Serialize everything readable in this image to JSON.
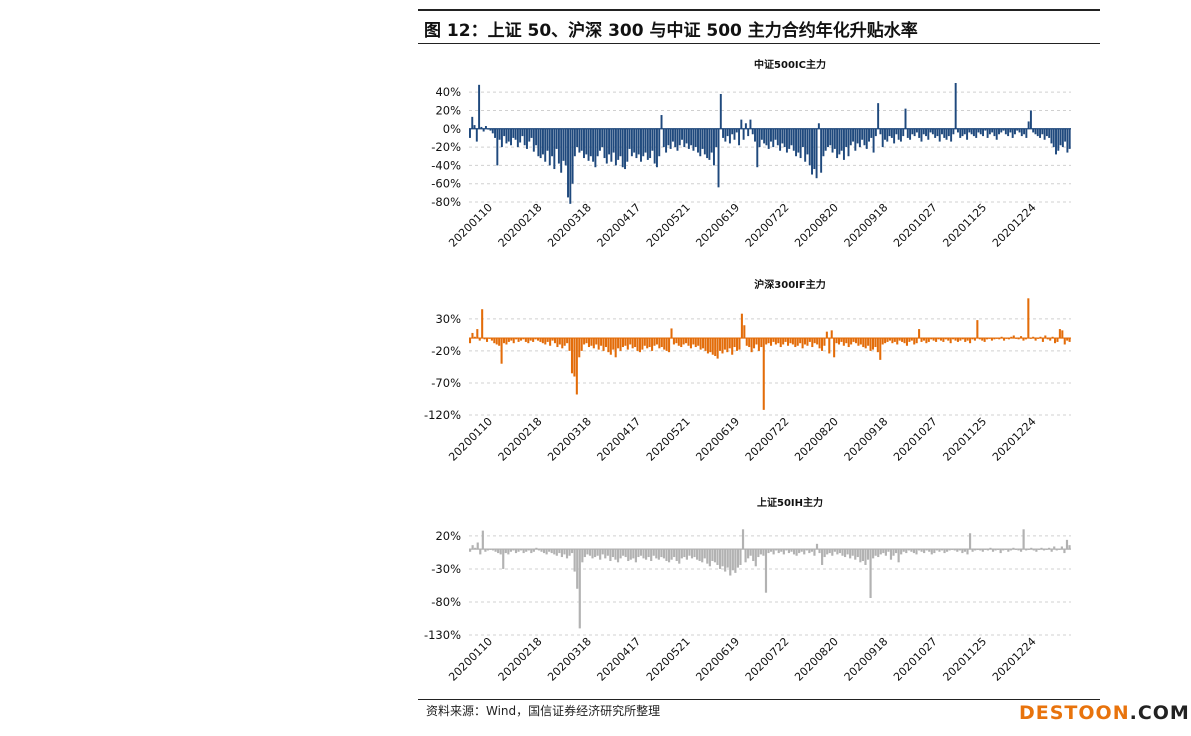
{
  "report": {
    "figure_title": "图 12：上证 50、沪深 300 与中证 500 主力合约年化升贴水率",
    "source_note": "资料来源：Wind，国信证券经济研究所整理",
    "watermark_a": "DESTOON",
    "watermark_b": ".COM"
  },
  "chart_data": [
    {
      "type": "bar",
      "title": "中证500IC主力",
      "color": "#1f497d",
      "ylim": [
        -80,
        50
      ],
      "yticks": [
        "40%",
        "20%",
        "0%",
        "-20%",
        "-40%",
        "-60%",
        "-80%"
      ],
      "ytick_values": [
        40,
        20,
        0,
        -20,
        -40,
        -60,
        -80
      ],
      "x_tick_labels": [
        "20200110",
        "20200218",
        "20200318",
        "20200417",
        "20200521",
        "20200619",
        "20200722",
        "20200820",
        "20200918",
        "20201027",
        "20201125",
        "20201224"
      ],
      "grid": true,
      "values": [
        -10,
        13,
        4,
        -14,
        48,
        2,
        -3,
        3,
        0,
        -2,
        -5,
        -10,
        -40,
        -12,
        -20,
        -8,
        -16,
        -14,
        -18,
        -10,
        -12,
        -20,
        -15,
        -8,
        -18,
        -22,
        -14,
        -10,
        -25,
        -18,
        -30,
        -32,
        -28,
        -36,
        -24,
        -40,
        -30,
        -44,
        -22,
        -38,
        -48,
        -35,
        -40,
        -75,
        -82,
        -60,
        -30,
        -20,
        -26,
        -24,
        -32,
        -28,
        -35,
        -30,
        -36,
        -42,
        -30,
        -24,
        -20,
        -32,
        -38,
        -28,
        -36,
        -26,
        -40,
        -34,
        -30,
        -42,
        -44,
        -36,
        -22,
        -30,
        -26,
        -32,
        -28,
        -36,
        -30,
        -26,
        -34,
        -32,
        -24,
        -38,
        -42,
        -30,
        15,
        -20,
        -26,
        -18,
        -22,
        -14,
        -20,
        -24,
        -18,
        -12,
        -20,
        -16,
        -22,
        -18,
        -24,
        -20,
        -26,
        -30,
        -22,
        -28,
        -32,
        -34,
        -26,
        -40,
        -20,
        -64,
        38,
        -10,
        -14,
        -8,
        -16,
        -6,
        -12,
        -4,
        -18,
        10,
        -12,
        6,
        -8,
        10,
        -6,
        -14,
        -42,
        -20,
        -12,
        -16,
        -18,
        -22,
        -14,
        -20,
        -12,
        -18,
        -24,
        -16,
        -20,
        -26,
        -22,
        -18,
        -24,
        -30,
        -26,
        -32,
        -20,
        -36,
        -28,
        -40,
        -50,
        -44,
        -54,
        6,
        -48,
        -30,
        -24,
        -20,
        -18,
        -26,
        -22,
        -32,
        -28,
        -24,
        -34,
        -20,
        -30,
        -18,
        -14,
        -24,
        -16,
        -20,
        -12,
        -18,
        -22,
        -14,
        -10,
        -26,
        -8,
        28,
        -6,
        -20,
        -12,
        -14,
        -8,
        -10,
        -16,
        -6,
        -12,
        -14,
        -8,
        22,
        -10,
        -12,
        -6,
        -8,
        -4,
        -10,
        -14,
        -6,
        -8,
        -12,
        -4,
        -6,
        -10,
        -8,
        -14,
        -6,
        -10,
        -12,
        -8,
        -14,
        -6,
        50,
        -4,
        -10,
        -8,
        -6,
        -12,
        -4,
        -6,
        -8,
        -10,
        -4,
        -6,
        -8,
        -2,
        -10,
        -6,
        -4,
        -8,
        -12,
        -6,
        -4,
        -2,
        -6,
        -8,
        -4,
        -10,
        -6,
        -2,
        -4,
        -8,
        -6,
        -10,
        8,
        20,
        -4,
        -6,
        -8,
        -10,
        -6,
        -12,
        -8,
        -10,
        -16,
        -20,
        -28,
        -24,
        -18,
        -20,
        -14,
        -26,
        -22
      ]
    },
    {
      "type": "bar",
      "title": "沪深300IF主力",
      "color": "#e36c09",
      "ylim": [
        -120,
        50
      ],
      "yticks": [
        "30%",
        "-20%",
        "-70%",
        "-120%"
      ],
      "ytick_values": [
        30,
        -20,
        -70,
        -120
      ],
      "x_tick_labels": [
        "20200110",
        "20200218",
        "20200318",
        "20200417",
        "20200521",
        "20200619",
        "20200722",
        "20200820",
        "20200918",
        "20201027",
        "20201125",
        "20201224"
      ],
      "grid": true,
      "values": [
        -8,
        8,
        2,
        14,
        -4,
        45,
        -2,
        -6,
        0,
        -4,
        -8,
        -10,
        -12,
        -40,
        -8,
        -10,
        -6,
        -4,
        -8,
        -2,
        -6,
        -4,
        -2,
        -6,
        -8,
        -4,
        -6,
        -2,
        -4,
        -6,
        -8,
        -10,
        -6,
        -12,
        -4,
        -8,
        -14,
        -10,
        -16,
        -12,
        -8,
        -20,
        -55,
        -60,
        -88,
        -30,
        -20,
        -10,
        -8,
        -14,
        -12,
        -16,
        -10,
        -18,
        -12,
        -20,
        -14,
        -22,
        -26,
        -18,
        -30,
        -16,
        -20,
        -14,
        -12,
        -18,
        -10,
        -16,
        -14,
        -20,
        -22,
        -18,
        -12,
        -16,
        -14,
        -20,
        -12,
        -10,
        -16,
        -14,
        -18,
        -20,
        -22,
        15,
        -10,
        -8,
        -12,
        -14,
        -10,
        -8,
        -12,
        -16,
        -10,
        -14,
        -12,
        -18,
        -16,
        -20,
        -24,
        -22,
        -26,
        -28,
        -32,
        -20,
        -24,
        -18,
        -22,
        -16,
        -26,
        -14,
        -20,
        -18,
        38,
        20,
        -12,
        -14,
        -22,
        -16,
        -10,
        -20,
        -14,
        -112,
        -10,
        -8,
        -12,
        -6,
        -10,
        -8,
        -14,
        -10,
        -6,
        -12,
        -8,
        -10,
        -14,
        -12,
        -8,
        -16,
        -10,
        -12,
        -6,
        -14,
        -8,
        -10,
        -16,
        -20,
        -12,
        10,
        -24,
        12,
        -30,
        -8,
        -10,
        -6,
        -12,
        -8,
        -14,
        -10,
        -6,
        -8,
        -12,
        -10,
        -14,
        -16,
        -12,
        -20,
        -18,
        -14,
        -22,
        -34,
        -10,
        -8,
        -6,
        -4,
        -8,
        -6,
        -10,
        -4,
        -6,
        -8,
        -12,
        -6,
        -4,
        -10,
        -8,
        14,
        -6,
        -4,
        -8,
        -6,
        -2,
        -4,
        -6,
        -2,
        -4,
        -6,
        -2,
        -4,
        -8,
        -2,
        -4,
        -6,
        -4,
        -2,
        -6,
        -4,
        -8,
        -2,
        -4,
        28,
        -2,
        -4,
        -6,
        -2,
        0,
        -4,
        -2,
        0,
        -2,
        2,
        -4,
        0,
        -2,
        2,
        4,
        0,
        -2,
        3,
        -4,
        -2,
        62,
        0,
        2,
        -4,
        0,
        2,
        -6,
        4,
        -2,
        -4,
        2,
        -8,
        -6,
        14,
        12,
        -10,
        -4,
        -6
      ]
    },
    {
      "type": "bar",
      "title": "上证50IH主力",
      "color": "#b2b2b2",
      "ylim": [
        -130,
        35
      ],
      "yticks": [
        "20%",
        "-30%",
        "-80%",
        "-130%"
      ],
      "ytick_values": [
        20,
        -30,
        -80,
        -130
      ],
      "x_tick_labels": [
        "20200110",
        "20200218",
        "20200318",
        "20200417",
        "20200521",
        "20200619",
        "20200722",
        "20200820",
        "20200918",
        "20201027",
        "20201125",
        "20201224"
      ],
      "grid": true,
      "values": [
        -4,
        6,
        2,
        10,
        -8,
        28,
        -4,
        -2,
        0,
        -2,
        -4,
        -6,
        -8,
        -30,
        -6,
        -8,
        -4,
        -2,
        -6,
        -4,
        -2,
        -6,
        -4,
        -2,
        -6,
        -4,
        2,
        -2,
        -4,
        -6,
        -8,
        -4,
        -6,
        -8,
        -10,
        -6,
        -12,
        -8,
        -14,
        -10,
        -6,
        -34,
        -60,
        -120,
        -20,
        -12,
        -8,
        -10,
        -14,
        -12,
        -10,
        -16,
        -8,
        -14,
        -10,
        -18,
        -12,
        -16,
        -20,
        -14,
        -10,
        -12,
        -18,
        -16,
        -14,
        -20,
        -12,
        -10,
        -14,
        -16,
        -12,
        -18,
        -10,
        -14,
        -16,
        -12,
        -14,
        -18,
        -20,
        -16,
        -12,
        -18,
        -22,
        -14,
        -12,
        -16,
        -10,
        -14,
        -12,
        -16,
        -18,
        -20,
        -14,
        -22,
        -26,
        -18,
        -20,
        -24,
        -30,
        -26,
        -34,
        -28,
        -40,
        -32,
        -36,
        -28,
        -24,
        30,
        -20,
        -14,
        -10,
        -18,
        -26,
        -12,
        -8,
        -10,
        -66,
        -6,
        -4,
        -8,
        -2,
        -6,
        -4,
        -8,
        -2,
        -6,
        -4,
        -8,
        -10,
        -6,
        -4,
        -8,
        -2,
        -6,
        -4,
        -10,
        8,
        -6,
        -24,
        -12,
        -8,
        -6,
        -10,
        -4,
        -8,
        -6,
        -10,
        -12,
        -8,
        -14,
        -10,
        -16,
        -12,
        -20,
        -18,
        -24,
        -16,
        -74,
        -14,
        -10,
        -12,
        -8,
        -6,
        -10,
        -4,
        -16,
        -10,
        -6,
        -20,
        -8,
        -4,
        -6,
        -2,
        -4,
        -6,
        -8,
        -2,
        -4,
        -6,
        -2,
        -4,
        -8,
        -6,
        -2,
        -4,
        -2,
        -6,
        -4,
        -2,
        0,
        -2,
        -4,
        -2,
        -6,
        -4,
        -8,
        24,
        -4,
        -2,
        0,
        -2,
        -4,
        0,
        -2,
        2,
        -4,
        -2,
        0,
        -6,
        -2,
        0,
        -4,
        -2,
        2,
        0,
        -2,
        -4,
        30,
        -2,
        0,
        2,
        -2,
        -4,
        0,
        2,
        -2,
        0,
        2,
        -4,
        4,
        -2,
        0,
        4,
        -6,
        14,
        6
      ]
    }
  ]
}
